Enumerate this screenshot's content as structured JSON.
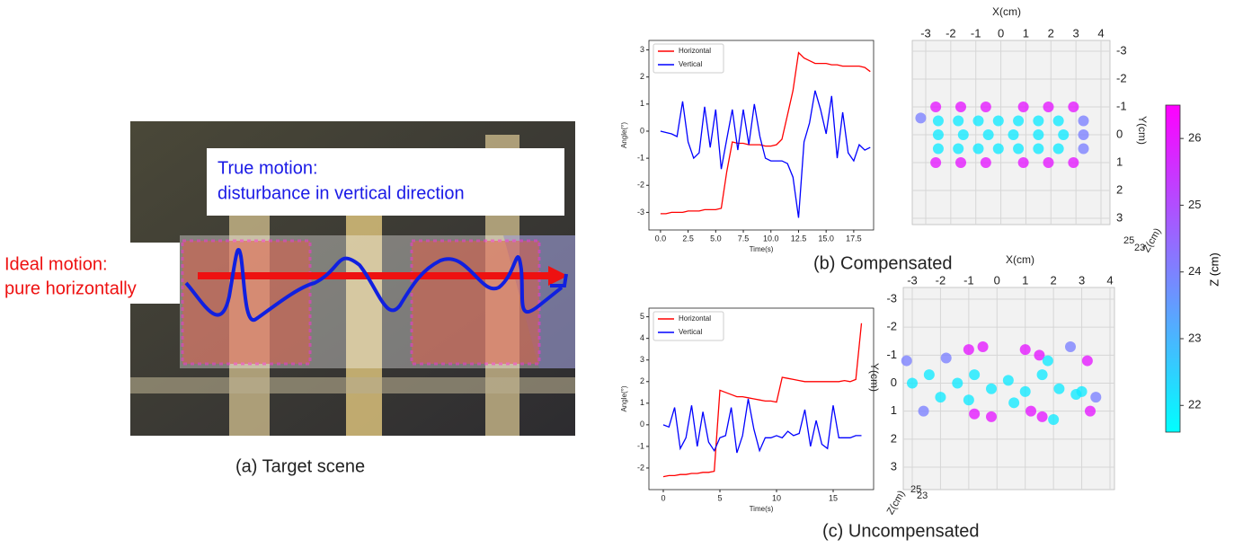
{
  "panel_a": {
    "caption": "(a) Target scene",
    "true_motion": [
      "True motion:",
      "disturbance in vertical direction"
    ],
    "ideal_motion": [
      "Ideal motion:",
      "pure horizontally"
    ]
  },
  "captions": {
    "b": "(b) Compensated",
    "c": "(c) Uncompensated"
  },
  "chart_data": [
    {
      "type": "line",
      "xlabel": "Time(s)",
      "ylabel": "Angle(°)",
      "xlim": [
        -1.05,
        19.3
      ],
      "xticks": [
        {
          "value": 0,
          "label": "0.0"
        },
        2.5,
        {
          "value": 5,
          "label": "5.0"
        },
        7.5,
        {
          "value": 10,
          "label": "10.0"
        },
        12.5,
        {
          "value": 15,
          "label": "15.0"
        },
        17.5
      ],
      "ylim": [
        -3.65,
        3.35
      ],
      "yticks": [
        -3,
        -2,
        -1,
        0,
        1,
        2,
        3
      ],
      "x": [
        0,
        0.5,
        1,
        1.5,
        2,
        2.5,
        3,
        3.5,
        4,
        4.5,
        5,
        5.5,
        6,
        6.5,
        7,
        7.5,
        8,
        8.5,
        9,
        9.5,
        10,
        10.5,
        11,
        11.5,
        12,
        12.5,
        13,
        13.5,
        14,
        14.5,
        15,
        15.5,
        16,
        16.5,
        17,
        17.5,
        18,
        18.5,
        19
      ],
      "series": [
        {
          "name": "Horizontal",
          "color": "#ff0000",
          "values": [
            -3.05,
            -3.05,
            -3.0,
            -3.0,
            -3.0,
            -2.95,
            -2.95,
            -2.95,
            -2.9,
            -2.9,
            -2.9,
            -2.85,
            -1.5,
            -0.4,
            -0.45,
            -0.45,
            -0.5,
            -0.5,
            -0.5,
            -0.55,
            -0.55,
            -0.5,
            -0.3,
            0.6,
            1.5,
            2.9,
            2.7,
            2.6,
            2.5,
            2.5,
            2.5,
            2.45,
            2.45,
            2.4,
            2.4,
            2.4,
            2.4,
            2.35,
            2.2
          ]
        },
        {
          "name": "Vertical",
          "color": "#0000ff",
          "values": [
            0,
            -0.05,
            -0.1,
            -0.2,
            1.1,
            -0.4,
            -1.0,
            -0.8,
            0.9,
            -0.6,
            0.8,
            -1.4,
            -0.3,
            0.8,
            -0.7,
            0.8,
            -0.5,
            1.0,
            -0.2,
            -1.0,
            -1.1,
            -1.1,
            -1.1,
            -1.2,
            -1.7,
            -3.2,
            -0.4,
            0.3,
            1.5,
            0.8,
            -0.1,
            1.3,
            -1.0,
            0.7,
            -0.8,
            -1.1,
            -0.5,
            -0.7,
            -0.6
          ]
        }
      ]
    },
    {
      "type": "scatter3d",
      "x_label": "X(cm)",
      "y_label": "Y(cm)",
      "z_label": "Z(cm)",
      "xlim": [
        -3,
        4
      ],
      "xticks": [
        -3,
        -2,
        -1,
        0,
        1,
        2,
        3,
        4
      ],
      "ylim": [
        -3,
        3
      ],
      "yticks": [
        -3,
        -2,
        -1,
        0,
        1,
        2,
        3
      ],
      "zticks": [
        25,
        23
      ],
      "x": [
        -2.6,
        -1.6,
        -0.6,
        0.9,
        1.9,
        2.9,
        -2.6,
        -1.6,
        -0.6,
        0.9,
        1.9,
        2.9,
        -2.5,
        -1.7,
        -0.9,
        -0.1,
        0.7,
        1.5,
        2.3,
        -2.5,
        -1.5,
        -0.5,
        0.5,
        1.5,
        2.5,
        -2.5,
        -1.7,
        -0.9,
        -0.1,
        0.7,
        1.5,
        2.3,
        3.3,
        3.3,
        3.3,
        -3.2
      ],
      "y": [
        -1,
        -1,
        -1,
        -1,
        -1,
        -1,
        1,
        1,
        1,
        1,
        1,
        1,
        -0.5,
        -0.5,
        -0.5,
        -0.5,
        -0.5,
        -0.5,
        -0.5,
        0,
        0,
        0,
        0,
        0,
        0,
        0.5,
        0.5,
        0.5,
        0.5,
        0.5,
        0.5,
        0.5,
        -0.5,
        0,
        0.5,
        -0.6
      ],
      "z": [
        26,
        26,
        26,
        26,
        26,
        26,
        26,
        26,
        26,
        26,
        26,
        26,
        22,
        22,
        22,
        22,
        22,
        22,
        22,
        22,
        22,
        22,
        22,
        22,
        22,
        22,
        22,
        22,
        22,
        22,
        22,
        22,
        24,
        24,
        24,
        24
      ]
    },
    {
      "type": "line",
      "xlabel": "Time(s)",
      "ylabel": "Angle(°)",
      "xlim": [
        -1.27,
        18.57
      ],
      "xticks": [
        0,
        5,
        10,
        15
      ],
      "ylim": [
        -3.0,
        5.4
      ],
      "yticks": [
        -2,
        -1,
        0,
        1,
        2,
        3,
        4,
        5
      ],
      "x": [
        0,
        0.5,
        1,
        1.5,
        2,
        2.5,
        3,
        3.5,
        4,
        4.5,
        5,
        5.5,
        6,
        6.5,
        7,
        7.5,
        8,
        8.5,
        9,
        9.5,
        10,
        10.5,
        11,
        11.5,
        12,
        12.5,
        13,
        13.5,
        14,
        14.5,
        15,
        15.5,
        16,
        16.5,
        17,
        17.5
      ],
      "series": [
        {
          "name": "Horizontal",
          "color": "#ff0000",
          "values": [
            -2.4,
            -2.35,
            -2.35,
            -2.3,
            -2.3,
            -2.25,
            -2.25,
            -2.2,
            -2.2,
            -2.15,
            1.6,
            1.5,
            1.4,
            1.3,
            1.3,
            1.25,
            1.2,
            1.15,
            1.1,
            1.1,
            1.05,
            2.2,
            2.15,
            2.1,
            2.05,
            2.0,
            2.0,
            2.0,
            2.0,
            2.0,
            2.0,
            2.0,
            2.05,
            2.0,
            2.1,
            4.7
          ]
        },
        {
          "name": "Vertical",
          "color": "#0000ff",
          "values": [
            0,
            -0.1,
            0.8,
            -1.1,
            -0.6,
            0.9,
            -1.0,
            0.6,
            -0.8,
            -1.2,
            -0.6,
            -0.5,
            0.8,
            -1.3,
            -0.5,
            1.2,
            -0.2,
            -1.2,
            -0.6,
            -0.6,
            -0.5,
            -0.6,
            -0.3,
            -0.5,
            -0.4,
            0.7,
            -1.0,
            0.2,
            -0.9,
            -1.1,
            0.9,
            -0.6,
            -0.6,
            -0.6,
            -0.5,
            -0.5
          ]
        }
      ]
    },
    {
      "type": "scatter3d",
      "x_label": "X(cm)",
      "y_label": "Y(cm)",
      "z_label": "Z(cm)",
      "xlim": [
        -3,
        4
      ],
      "xticks": [
        -3,
        -2,
        -1,
        0,
        1,
        2,
        3,
        4
      ],
      "ylim": [
        -3,
        3
      ],
      "yticks": [
        -3,
        -2,
        -1,
        0,
        1,
        2,
        3
      ],
      "zticks": [
        25,
        23
      ],
      "x": [
        -1.0,
        -0.5,
        1.0,
        1.5,
        -0.8,
        -0.2,
        1.2,
        1.6,
        3.2,
        3.3,
        -3.0,
        -2.4,
        -2.0,
        -1.4,
        -0.8,
        -0.2,
        0.4,
        1.0,
        1.6,
        2.2,
        2.8,
        -1.0,
        0.6,
        2.0,
        1.8,
        3.0,
        -3.2,
        -2.6,
        2.6,
        -1.8,
        3.5
      ],
      "y": [
        -1.2,
        -1.3,
        -1.2,
        -1.0,
        1.1,
        1.2,
        1.0,
        1.2,
        -0.8,
        1.0,
        0,
        -0.3,
        0.5,
        0,
        -0.3,
        0.2,
        -0.1,
        0.3,
        -0.3,
        0.2,
        0.4,
        0.6,
        0.7,
        1.3,
        -0.8,
        0.3,
        -0.8,
        1.0,
        -1.3,
        -0.9,
        0.5
      ],
      "z": [
        26,
        26,
        26,
        26,
        26,
        26,
        26,
        26,
        26,
        26,
        22,
        22,
        22,
        22,
        22,
        22,
        22,
        22,
        22,
        22,
        22,
        22,
        22,
        22,
        22,
        22,
        24,
        24,
        24,
        24,
        24
      ]
    }
  ],
  "colorbar": {
    "label": "Z (cm)",
    "clim": [
      21.6,
      26.5
    ],
    "ticks": [
      22,
      23,
      24,
      25,
      26
    ],
    "colors": [
      "#00ffff",
      "#ff00ff"
    ]
  }
}
